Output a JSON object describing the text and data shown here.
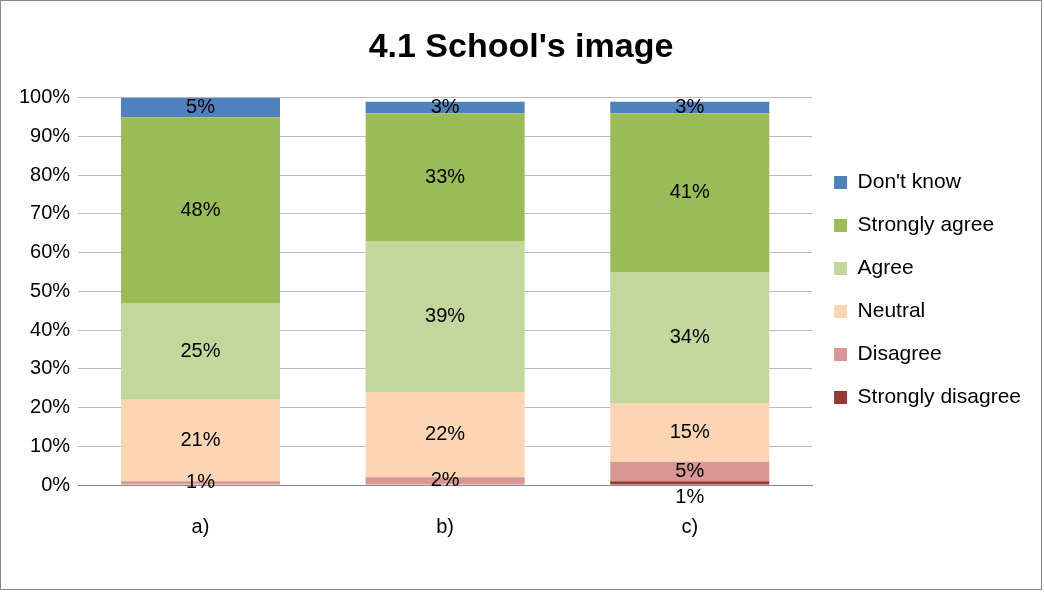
{
  "chart_data": {
    "type": "bar",
    "title": "4.1 School's image",
    "categories": [
      "a)",
      "b)",
      "c)"
    ],
    "stacked": true,
    "series": [
      {
        "name": "Strongly disagree",
        "color": "#953735",
        "values": [
          null,
          null,
          1
        ],
        "value_labels": [
          null,
          null,
          "1%"
        ]
      },
      {
        "name": "Disagree",
        "color": "#d99694",
        "values": [
          1,
          2,
          5
        ],
        "value_labels": [
          "1%",
          "2%",
          "5%"
        ]
      },
      {
        "name": "Neutral",
        "color": "#fcd5b5",
        "values": [
          21,
          22,
          15
        ],
        "value_labels": [
          "21%",
          "22%",
          "15%"
        ]
      },
      {
        "name": "Agree",
        "color": "#c3d69b",
        "values": [
          25,
          39,
          34
        ],
        "value_labels": [
          "25%",
          "39%",
          "34%"
        ]
      },
      {
        "name": "Strongly agree",
        "color": "#9bbb59",
        "values": [
          48,
          33,
          41
        ],
        "value_labels": [
          "48%",
          "33%",
          "41%"
        ]
      },
      {
        "name": "Don't know",
        "color": "#4f81bd",
        "values": [
          5,
          3,
          3
        ],
        "value_labels": [
          "5%",
          "3%",
          "3%"
        ]
      }
    ],
    "ylim": [
      0,
      100
    ],
    "yticks": [
      {
        "value": 0,
        "label": "0%"
      },
      {
        "value": 10,
        "label": "10%"
      },
      {
        "value": 20,
        "label": "20%"
      },
      {
        "value": 30,
        "label": "30%"
      },
      {
        "value": 40,
        "label": "40%"
      },
      {
        "value": 50,
        "label": "50%"
      },
      {
        "value": 60,
        "label": "60%"
      },
      {
        "value": 70,
        "label": "70%"
      },
      {
        "value": 80,
        "label": "80%"
      },
      {
        "value": 90,
        "label": "90%"
      },
      {
        "value": 100,
        "label": "100%"
      }
    ],
    "grid": "y",
    "legend": "right"
  }
}
